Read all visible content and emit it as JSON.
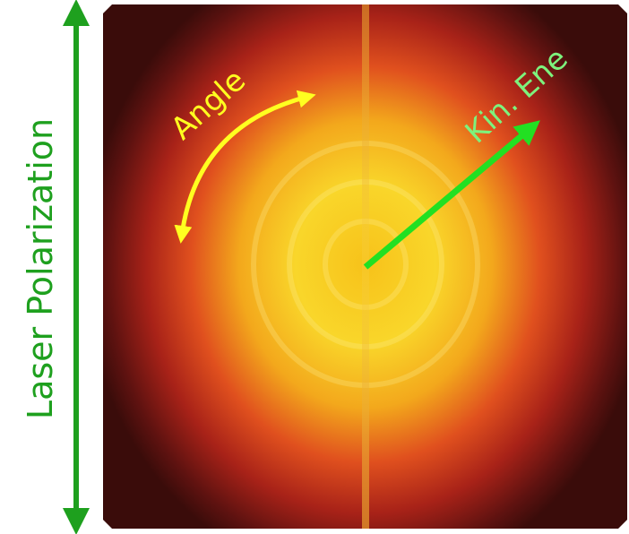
{
  "labels": {
    "polarization": "Laser Polarization",
    "angle": "Angle",
    "kinetic_energy": "Kin. Ene"
  }
}
